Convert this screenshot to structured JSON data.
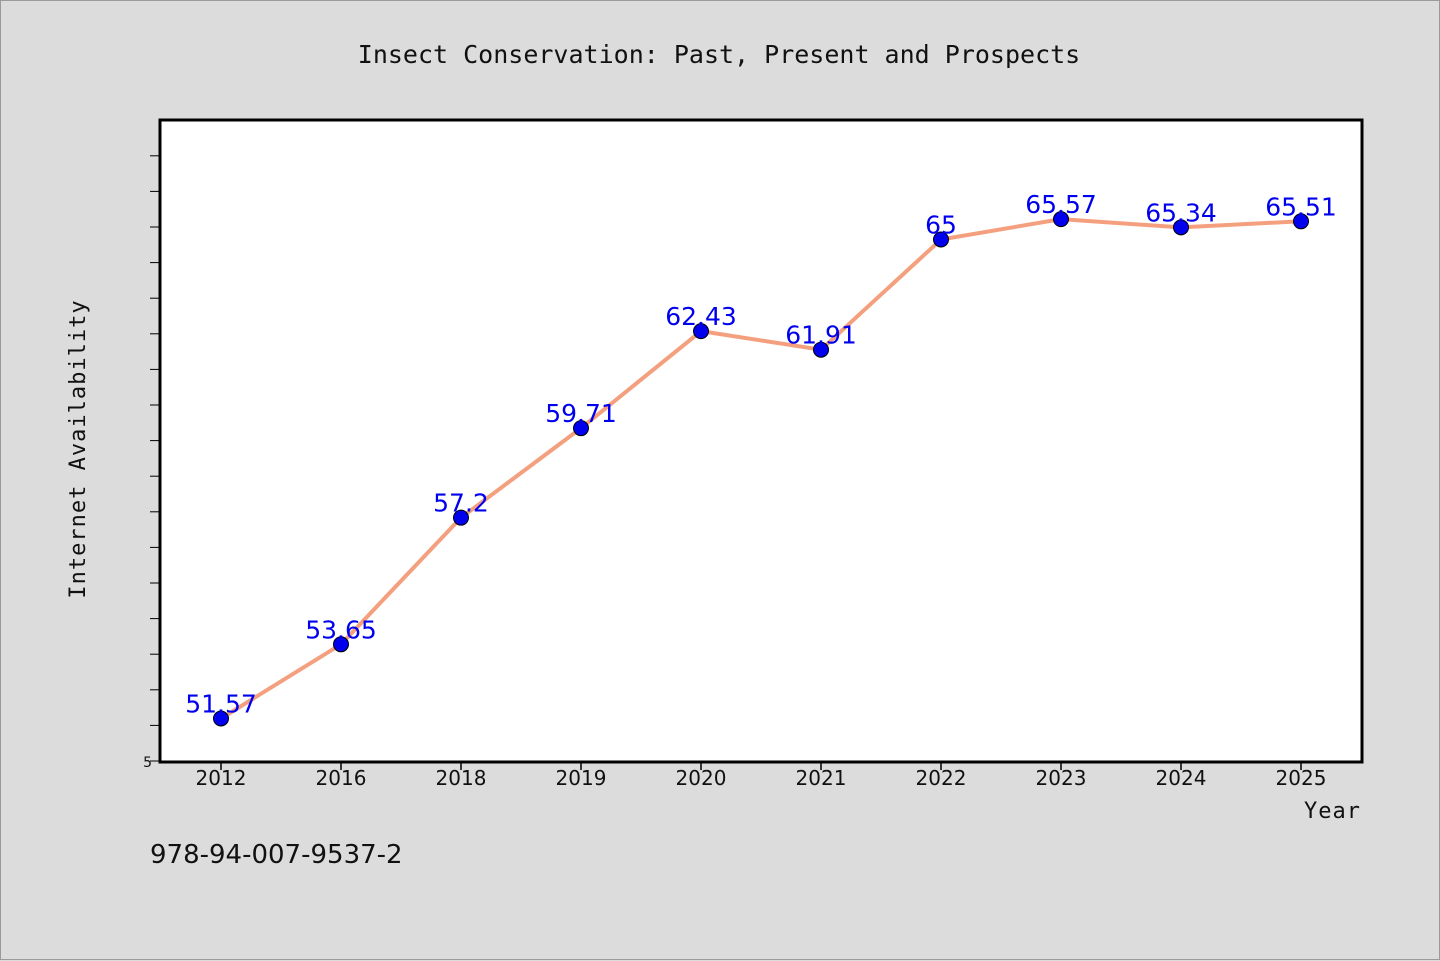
{
  "chart_data": {
    "type": "line",
    "title": "Insect Conservation: Past, Present and Prospects",
    "xlabel": "Year",
    "ylabel": "Internet Availability",
    "categories": [
      "2012",
      "2016",
      "2018",
      "2019",
      "2020",
      "2021",
      "2022",
      "2023",
      "2024",
      "2025"
    ],
    "series": [
      {
        "values": [
          51.57,
          53.65,
          57.2,
          59.71,
          62.43,
          61.91,
          65,
          65.57,
          65.34,
          65.51
        ],
        "data_labels": [
          "51.57",
          "53.65",
          "57.2",
          "59.71",
          "62.43",
          "61.91",
          "65",
          "65.57",
          "65.34",
          "65.51"
        ]
      }
    ],
    "ylim": [
      50.35,
      68.35
    ],
    "yticks_labeled": [
      "5"
    ],
    "grid": false,
    "legend": "none",
    "colors": {
      "line": "#f4a07f",
      "marker": "#0000ee",
      "data_label": "#0000ee",
      "background": "#dcdcdc",
      "plot_background": "#ffffff"
    }
  },
  "footer": {
    "isbn": "978-94-007-9537-2"
  }
}
